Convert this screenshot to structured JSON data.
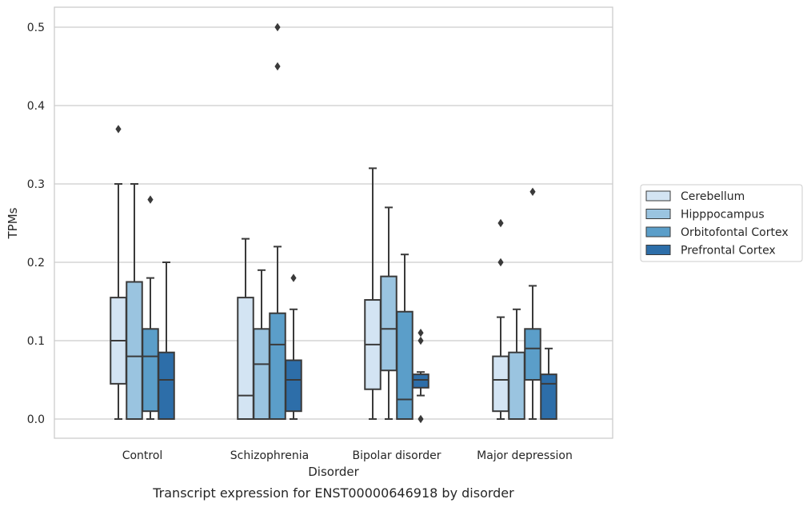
{
  "chart_data": {
    "type": "box",
    "caption": "Transcript expression for ENST00000646918 by disorder",
    "xlabel": "Disorder",
    "ylabel": "TPMs",
    "ylim": [
      -0.025,
      0.525
    ],
    "yticks": [
      0.0,
      0.1,
      0.2,
      0.3,
      0.4,
      0.5
    ],
    "ytick_labels": [
      "0.0",
      "0.1",
      "0.2",
      "0.3",
      "0.4",
      "0.5"
    ],
    "grid": true,
    "legend_position": "right",
    "categories": [
      "Control",
      "Schizophrenia",
      "Bipolar disorder",
      "Major depression"
    ],
    "series": [
      {
        "name": "Cerebellum",
        "color": "#d3e4f3",
        "boxes": [
          {
            "whisker_low": 0.0,
            "q1": 0.045,
            "median": 0.1,
            "q3": 0.155,
            "whisker_high": 0.3,
            "outliers": [
              0.37
            ]
          },
          {
            "whisker_low": 0.0,
            "q1": 0.0,
            "median": 0.03,
            "q3": 0.155,
            "whisker_high": 0.23,
            "outliers": []
          },
          {
            "whisker_low": 0.0,
            "q1": 0.038,
            "median": 0.095,
            "q3": 0.152,
            "whisker_high": 0.32,
            "outliers": []
          },
          {
            "whisker_low": 0.0,
            "q1": 0.01,
            "median": 0.05,
            "q3": 0.08,
            "whisker_high": 0.13,
            "outliers": [
              0.2,
              0.25
            ]
          }
        ]
      },
      {
        "name": "Hipppocampus",
        "color": "#9ac4e0",
        "boxes": [
          {
            "whisker_low": 0.0,
            "q1": 0.0,
            "median": 0.08,
            "q3": 0.175,
            "whisker_high": 0.3,
            "outliers": []
          },
          {
            "whisker_low": 0.0,
            "q1": 0.0,
            "median": 0.07,
            "q3": 0.115,
            "whisker_high": 0.19,
            "outliers": []
          },
          {
            "whisker_low": 0.0,
            "q1": 0.062,
            "median": 0.115,
            "q3": 0.182,
            "whisker_high": 0.27,
            "outliers": []
          },
          {
            "whisker_low": 0.0,
            "q1": 0.0,
            "median": 0.0,
            "q3": 0.085,
            "whisker_high": 0.14,
            "outliers": []
          }
        ]
      },
      {
        "name": "Orbitofontal Cortex",
        "color": "#5b9ec9",
        "boxes": [
          {
            "whisker_low": 0.0,
            "q1": 0.01,
            "median": 0.08,
            "q3": 0.115,
            "whisker_high": 0.18,
            "outliers": [
              0.28
            ]
          },
          {
            "whisker_low": 0.0,
            "q1": 0.0,
            "median": 0.095,
            "q3": 0.135,
            "whisker_high": 0.22,
            "outliers": [
              0.45,
              0.5
            ]
          },
          {
            "whisker_low": 0.0,
            "q1": 0.0,
            "median": 0.025,
            "q3": 0.137,
            "whisker_high": 0.21,
            "outliers": []
          },
          {
            "whisker_low": 0.0,
            "q1": 0.05,
            "median": 0.09,
            "q3": 0.115,
            "whisker_high": 0.17,
            "outliers": [
              0.29
            ]
          }
        ]
      },
      {
        "name": "Prefrontal Cortex",
        "color": "#2d6ea9",
        "boxes": [
          {
            "whisker_low": 0.0,
            "q1": 0.0,
            "median": 0.05,
            "q3": 0.085,
            "whisker_high": 0.2,
            "outliers": []
          },
          {
            "whisker_low": 0.0,
            "q1": 0.01,
            "median": 0.05,
            "q3": 0.075,
            "whisker_high": 0.14,
            "outliers": [
              0.18
            ]
          },
          {
            "whisker_low": 0.03,
            "q1": 0.04,
            "median": 0.05,
            "q3": 0.057,
            "whisker_high": 0.06,
            "outliers": [
              0.0,
              0.1,
              0.11
            ]
          },
          {
            "whisker_low": 0.0,
            "q1": 0.0,
            "median": 0.045,
            "q3": 0.057,
            "whisker_high": 0.09,
            "outliers": []
          }
        ]
      }
    ]
  }
}
